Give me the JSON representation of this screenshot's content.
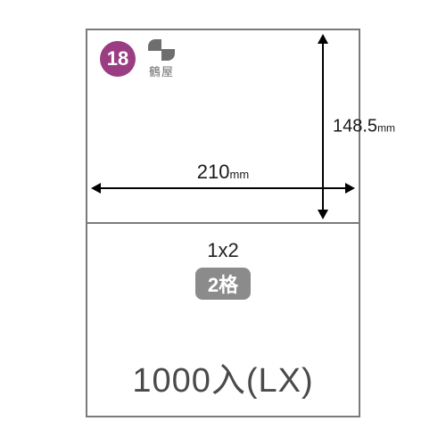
{
  "badge": {
    "number": "18",
    "bg": "#9a3d82",
    "fg": "#ffffff"
  },
  "brand": {
    "text": "鶴屋"
  },
  "dimensions": {
    "width_value": "210",
    "width_unit": "mm",
    "height_value": "148.5",
    "height_unit": "mm"
  },
  "layout": {
    "grid": "1x2",
    "cells": "2格"
  },
  "quantity": "1000入(LX)",
  "colors": {
    "border": "#7a7a7a",
    "pill_bg": "#8b8b8b",
    "pill_fg": "#ffffff",
    "text_dark": "#1a1a1a",
    "text_gray": "#4a4a4a",
    "background": "#ffffff"
  }
}
